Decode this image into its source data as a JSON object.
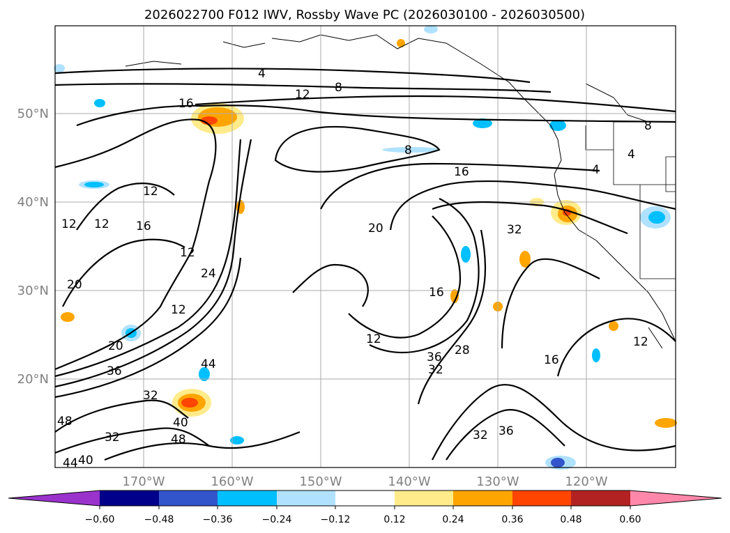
{
  "title": "2026022700 F012 IWV, Rossby Wave PC (2026030100 - 2026030500)",
  "map": {
    "lat_labels": [
      "50°N",
      "40°N",
      "30°N",
      "20°N"
    ],
    "lon_labels": [
      "170°W",
      "160°W",
      "150°W",
      "140°W",
      "130°W",
      "120°W"
    ],
    "contour_labels": [
      "4",
      "8",
      "12",
      "16",
      "8",
      "16",
      "4",
      "4",
      "8",
      "12",
      "12",
      "16",
      "12",
      "12",
      "20",
      "24",
      "12",
      "20",
      "36",
      "20",
      "12",
      "32",
      "16",
      "16",
      "28",
      "36",
      "32",
      "44",
      "32",
      "48",
      "40",
      "48",
      "32",
      "40",
      "44",
      "32",
      "36",
      "12"
    ]
  },
  "colorbar": {
    "ticks": [
      "−0.60",
      "−0.48",
      "−0.36",
      "−0.24",
      "−0.12",
      "0.12",
      "0.24",
      "0.36",
      "0.48",
      "0.60"
    ],
    "colors": [
      "#9933cc",
      "#00008b",
      "#3355cc",
      "#00bfff",
      "#b0e2ff",
      "#ffffff",
      "#ffeb8a",
      "#ffa500",
      "#ff4500",
      "#b22222",
      "#ff88aa"
    ]
  }
}
